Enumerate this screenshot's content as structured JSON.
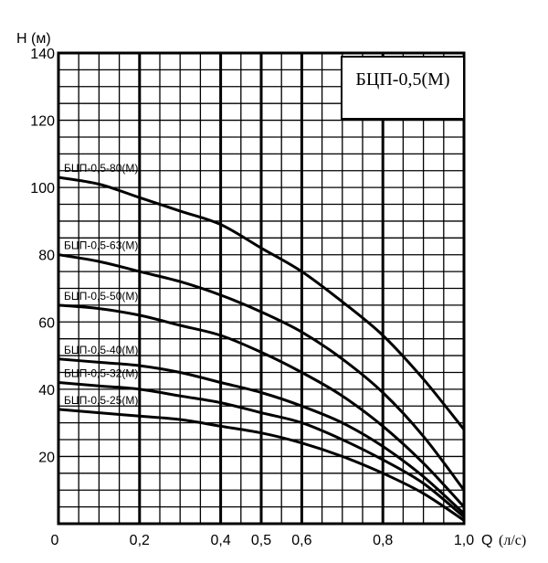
{
  "chart_data": {
    "type": "line",
    "title": "БЦП-0,5(М)",
    "ylabel": "H (м)",
    "xlabel": "Q",
    "xlabel_unit": "(л/с)",
    "xlim": [
      0,
      1.0
    ],
    "ylim": [
      0,
      140
    ],
    "grid": true,
    "x_ticks": [
      "0",
      "0,2",
      "0,4",
      "0,5",
      "0,6",
      "0,8",
      "1,0"
    ],
    "x_tick_values": [
      0,
      0.2,
      0.4,
      0.5,
      0.6,
      0.8,
      1.0
    ],
    "y_ticks": [
      "20",
      "40",
      "60",
      "80",
      "100",
      "120",
      "140"
    ],
    "y_tick_values": [
      20,
      40,
      60,
      80,
      100,
      120,
      140
    ],
    "series": [
      {
        "name": "БЦП-0,5-80(М)",
        "x": [
          0,
          0.1,
          0.2,
          0.3,
          0.4,
          0.5,
          0.6,
          0.7,
          0.8,
          0.9,
          1.0
        ],
        "y": [
          103,
          101,
          97,
          93,
          89,
          82,
          75,
          66,
          56,
          43,
          28
        ]
      },
      {
        "name": "БЦП-0,5-63(М)",
        "x": [
          0,
          0.1,
          0.2,
          0.3,
          0.4,
          0.5,
          0.6,
          0.7,
          0.8,
          0.9,
          1.0
        ],
        "y": [
          80,
          78,
          75,
          72,
          68,
          63,
          57,
          49,
          39,
          26,
          10
        ]
      },
      {
        "name": "БЦП-0,5-50(М)",
        "x": [
          0,
          0.1,
          0.2,
          0.3,
          0.4,
          0.5,
          0.6,
          0.7,
          0.8,
          0.9,
          1.0
        ],
        "y": [
          65,
          64,
          62,
          59,
          56,
          51,
          45,
          38,
          29,
          18,
          5
        ]
      },
      {
        "name": "БЦП-0,5-40(М)",
        "x": [
          0,
          0.1,
          0.2,
          0.3,
          0.4,
          0.5,
          0.6,
          0.7,
          0.8,
          0.9,
          1.0
        ],
        "y": [
          49,
          48,
          47,
          45,
          42,
          39,
          35,
          30,
          23,
          14,
          3
        ]
      },
      {
        "name": "БЦП-0,5-32(М)",
        "x": [
          0,
          0.1,
          0.2,
          0.3,
          0.4,
          0.5,
          0.6,
          0.7,
          0.8,
          0.9,
          1.0
        ],
        "y": [
          42,
          41,
          40,
          38,
          36,
          33,
          30,
          25,
          19,
          12,
          2
        ]
      },
      {
        "name": "БЦП-0,5-25(М)",
        "x": [
          0,
          0.1,
          0.2,
          0.3,
          0.4,
          0.5,
          0.6,
          0.7,
          0.8,
          0.9,
          1.0
        ],
        "y": [
          34,
          33,
          32,
          31,
          29,
          27,
          24,
          20,
          15,
          9,
          1
        ]
      }
    ]
  }
}
